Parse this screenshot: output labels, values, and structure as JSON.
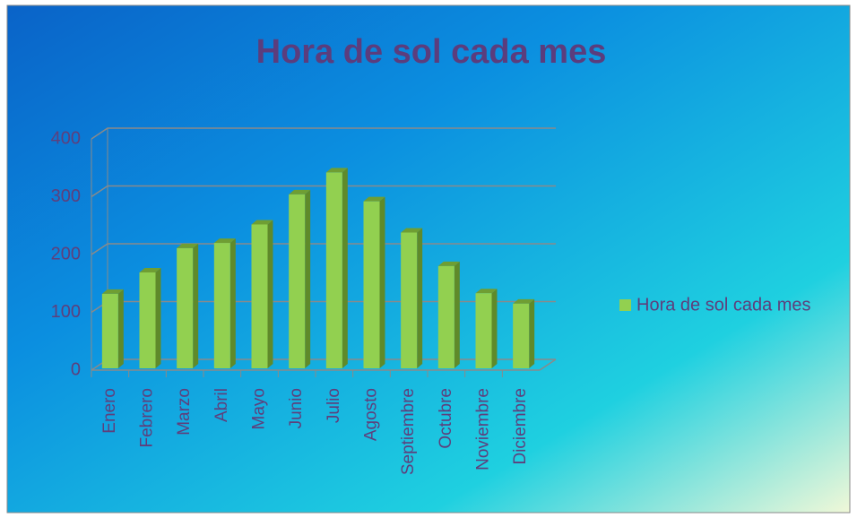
{
  "chart_data": {
    "type": "bar",
    "title": "Hora de sol cada mes",
    "categories": [
      "Enero",
      "Febrero",
      "Marzo",
      "Abril",
      "Mayo",
      "Junio",
      "Julio",
      "Agosto",
      "Septiembre",
      "Octubre",
      "Noviembre",
      "Diciembre"
    ],
    "series": [
      {
        "name": "Hora de sol cada mes",
        "color": "#92d050",
        "values": [
          132,
          169,
          211,
          220,
          252,
          304,
          342,
          292,
          238,
          180,
          133,
          115
        ]
      }
    ],
    "ylim": [
      0,
      400
    ],
    "yticks": [
      0,
      100,
      200,
      300,
      400
    ],
    "grid": true,
    "legend": "right"
  }
}
